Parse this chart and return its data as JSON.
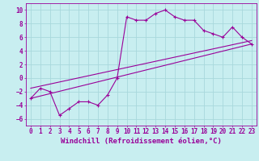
{
  "xlabel": "Windchill (Refroidissement éolien,°C)",
  "background_color": "#c8eef0",
  "grid_color": "#a8d8dc",
  "line_color": "#990099",
  "xlim": [
    -0.5,
    23.5
  ],
  "ylim": [
    -7,
    11
  ],
  "xticks": [
    0,
    1,
    2,
    3,
    4,
    5,
    6,
    7,
    8,
    9,
    10,
    11,
    12,
    13,
    14,
    15,
    16,
    17,
    18,
    19,
    20,
    21,
    22,
    23
  ],
  "yticks": [
    -6,
    -4,
    -2,
    0,
    2,
    4,
    6,
    8,
    10
  ],
  "series1_x": [
    0,
    1,
    2,
    3,
    4,
    5,
    6,
    7,
    8,
    9,
    10,
    11,
    12,
    13,
    14,
    15,
    16,
    17,
    18,
    19,
    20,
    21,
    22,
    23
  ],
  "series1_y": [
    -3,
    -1.5,
    -2,
    -5.5,
    -4.5,
    -3.5,
    -3.5,
    -4,
    -2.5,
    0,
    9,
    8.5,
    8.5,
    9.5,
    10,
    9,
    8.5,
    8.5,
    7,
    6.5,
    6,
    7.5,
    6,
    5
  ],
  "series2_x": [
    0,
    23
  ],
  "series2_y": [
    -3,
    5
  ],
  "series3_x": [
    0,
    23
  ],
  "series3_y": [
    -1.5,
    5.5
  ],
  "tick_fontsize": 5.5,
  "label_fontsize": 6.5,
  "figsize": [
    3.2,
    2.0
  ],
  "dpi": 100
}
